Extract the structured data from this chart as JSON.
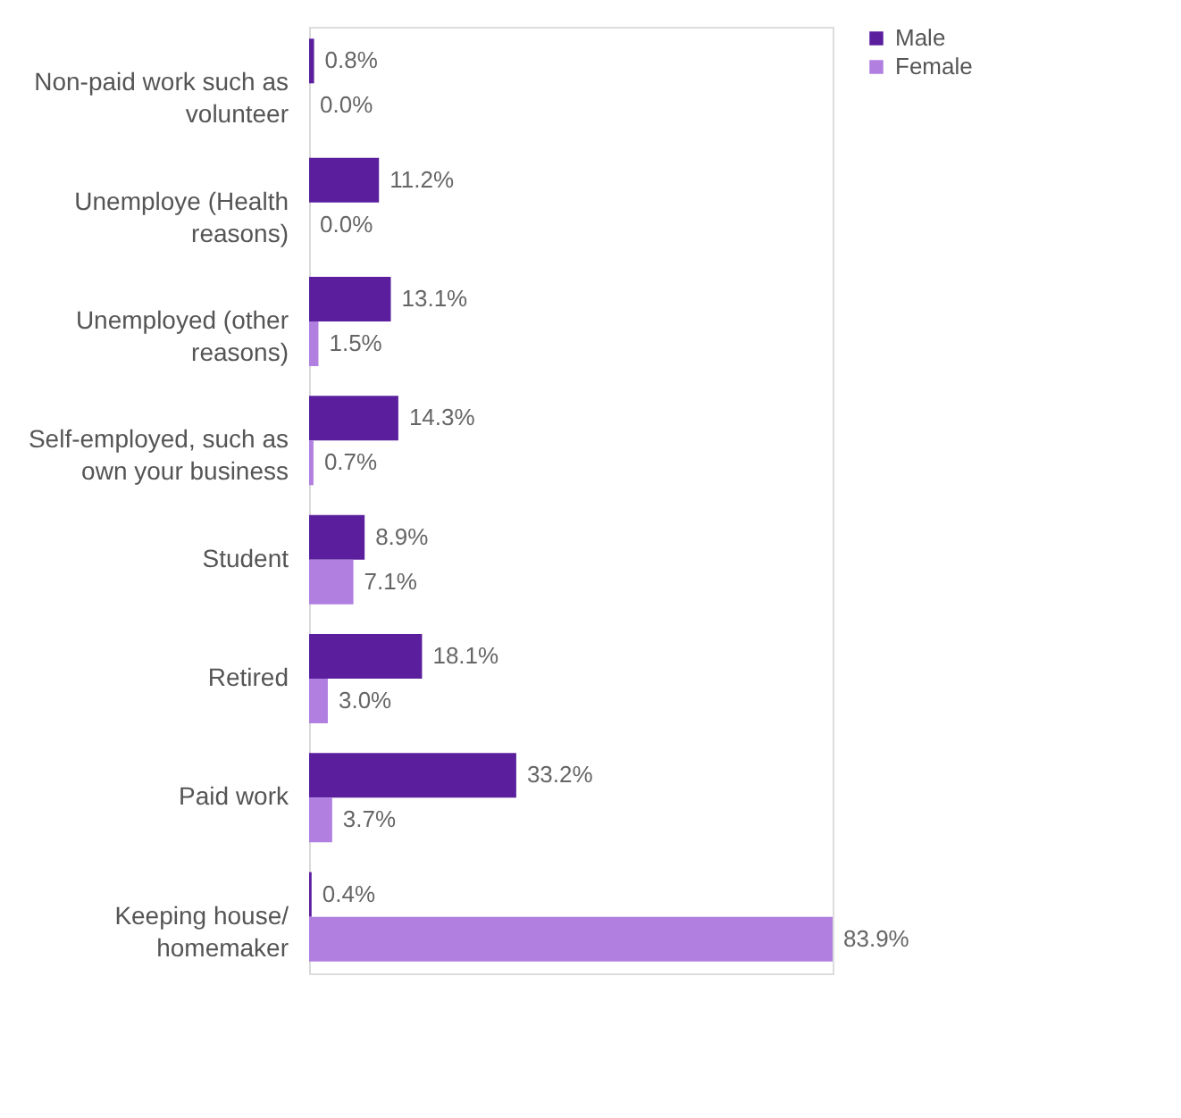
{
  "chart_data": {
    "type": "bar",
    "orientation": "horizontal",
    "categories": [
      "Non-paid work such as volunteer",
      "Unemploye (Health reasons)",
      "Unemployed (other reasons)",
      "Self-employed, such as own your business",
      "Student",
      "Retired",
      "Paid work",
      "Keeping house/ homemaker"
    ],
    "series": [
      {
        "name": "Male",
        "color": "#5b1f9e",
        "values": [
          0.8,
          11.2,
          13.1,
          14.3,
          8.9,
          18.1,
          33.2,
          0.4
        ],
        "value_labels": [
          "0.8%",
          "11.2%",
          "13.1%",
          "14.3%",
          "8.9%",
          "18.1%",
          "33.2%",
          "0.4%"
        ]
      },
      {
        "name": "Female",
        "color": "#b07fe0",
        "values": [
          0.0,
          0.0,
          1.5,
          0.7,
          7.1,
          3.0,
          3.7,
          83.9
        ],
        "value_labels": [
          "0.0%",
          "0.0%",
          "1.5%",
          "0.7%",
          "7.1%",
          "3.0%",
          "3.7%",
          "83.9%"
        ]
      }
    ],
    "legend": "right",
    "grid": false,
    "tick_labels": "y"
  }
}
